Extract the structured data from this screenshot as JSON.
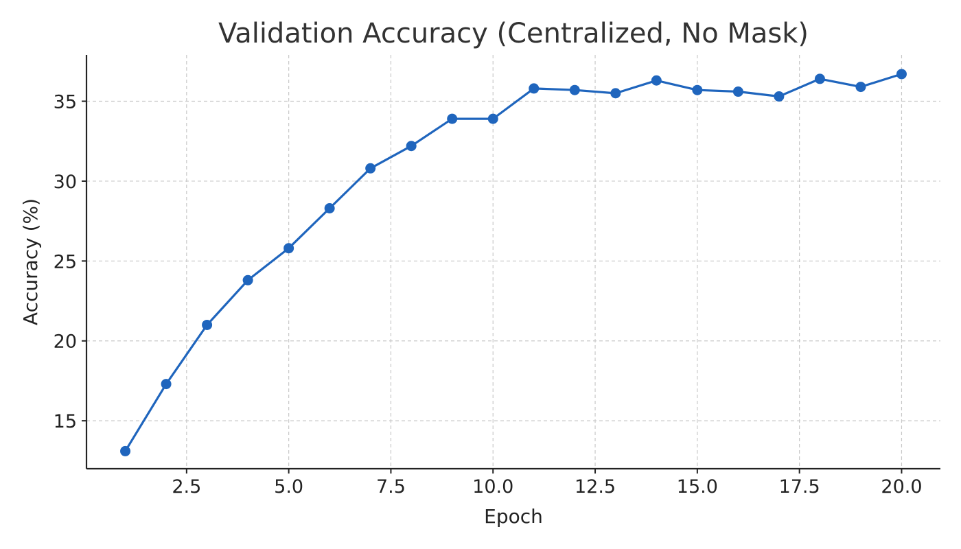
{
  "chart_data": {
    "type": "line",
    "title": "Validation Accuracy (Centralized, No Mask)",
    "xlabel": "Epoch",
    "ylabel": "Accuracy (%)",
    "xlim": [
      0.05,
      20.95
    ],
    "ylim": [
      12.0,
      37.9
    ],
    "x_ticks": [
      2.5,
      5.0,
      7.5,
      10.0,
      12.5,
      15.0,
      17.5,
      20.0
    ],
    "x_tick_labels": [
      "2.5",
      "5.0",
      "7.5",
      "10.0",
      "12.5",
      "15.0",
      "17.5",
      "20.0"
    ],
    "y_ticks": [
      15,
      20,
      25,
      30,
      35
    ],
    "y_tick_labels": [
      "15",
      "20",
      "25",
      "30",
      "35"
    ],
    "grid": true,
    "series": [
      {
        "color": "#1f65bd",
        "x": [
          1,
          2,
          3,
          4,
          5,
          6,
          7,
          8,
          9,
          10,
          11,
          12,
          13,
          14,
          15,
          16,
          17,
          18,
          19,
          20
        ],
        "y": [
          13.1,
          17.3,
          21.0,
          23.8,
          25.8,
          28.3,
          30.8,
          32.2,
          33.9,
          33.9,
          35.8,
          35.7,
          35.5,
          36.3,
          35.7,
          35.6,
          35.3,
          36.4,
          35.9,
          36.7
        ]
      }
    ]
  }
}
